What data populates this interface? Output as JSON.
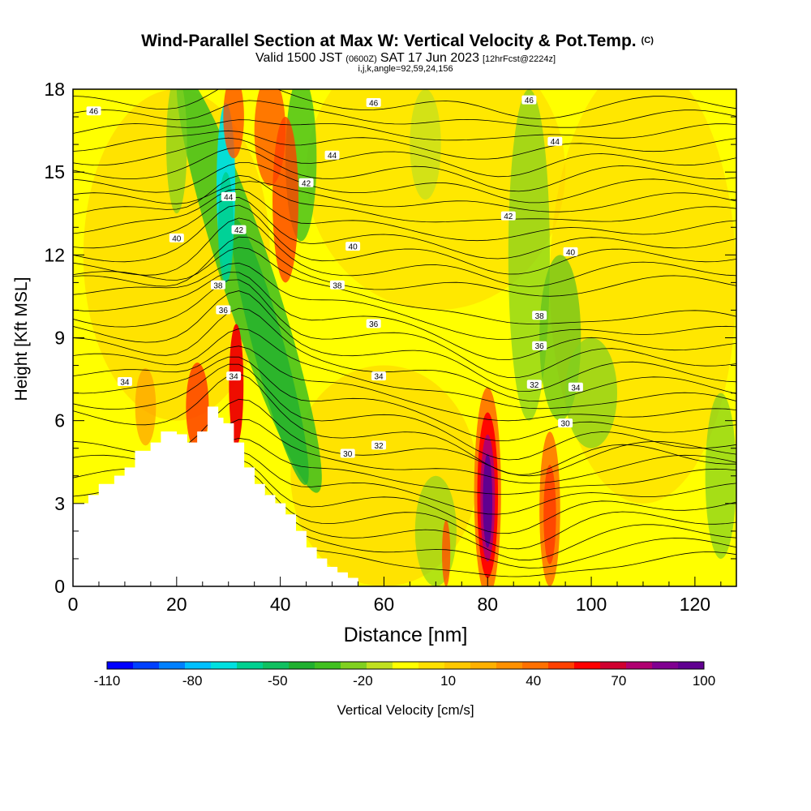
{
  "chart_data": {
    "type": "heatmap",
    "title_main": "Wind-Parallel Section at Max W: Vertical Velocity & Pot.Temp.",
    "title_copyright": "(C)",
    "subtitle_valid": "Valid 1500 JST",
    "subtitle_utc": "(0600Z)",
    "subtitle_date": "SAT 17 Jun 2023",
    "subtitle_fcst": "[12hrFcst@2224z]",
    "subtitle_params": "i,j,k,angle=92,59,24,156",
    "xlabel": "Distance [nm]",
    "ylabel": "Height [Kft MSL]",
    "xlim": [
      0,
      128
    ],
    "ylim": [
      0,
      18
    ],
    "x_ticks": [
      "0",
      "20",
      "40",
      "60",
      "80",
      "100",
      "120"
    ],
    "y_ticks": [
      "0",
      "3",
      "6",
      "9",
      "12",
      "15",
      "18"
    ],
    "colorbar": {
      "label": "Vertical Velocity [cm/s]",
      "tick_labels": [
        "-110",
        "-80",
        "-50",
        "-20",
        "10",
        "40",
        "70",
        "100"
      ],
      "colors": [
        "#0000ff",
        "#0040ff",
        "#0080ff",
        "#00c0ff",
        "#00e0e0",
        "#00d090",
        "#10c060",
        "#20b030",
        "#40c020",
        "#80d020",
        "#c0e020",
        "#ffff00",
        "#ffe000",
        "#ffc800",
        "#ffb000",
        "#ff9000",
        "#ff7000",
        "#ff4000",
        "#ff0000",
        "#d00030",
        "#b00070",
        "#800090",
        "#600090"
      ]
    },
    "theta_contour_labels": [
      {
        "text": "46",
        "x": 4,
        "y": 17.2
      },
      {
        "text": "46",
        "x": 58,
        "y": 17.5
      },
      {
        "text": "46",
        "x": 88,
        "y": 17.6
      },
      {
        "text": "44",
        "x": 50,
        "y": 15.6
      },
      {
        "text": "44",
        "x": 93,
        "y": 16.1
      },
      {
        "text": "44",
        "x": 30,
        "y": 14.1
      },
      {
        "text": "42",
        "x": 45,
        "y": 14.6
      },
      {
        "text": "42",
        "x": 84,
        "y": 13.4
      },
      {
        "text": "42",
        "x": 32,
        "y": 12.9
      },
      {
        "text": "40",
        "x": 20,
        "y": 12.6
      },
      {
        "text": "40",
        "x": 54,
        "y": 12.3
      },
      {
        "text": "40",
        "x": 96,
        "y": 12.1
      },
      {
        "text": "38",
        "x": 28,
        "y": 10.9
      },
      {
        "text": "38",
        "x": 51,
        "y": 10.9
      },
      {
        "text": "38",
        "x": 90,
        "y": 9.8
      },
      {
        "text": "36",
        "x": 29,
        "y": 10.0
      },
      {
        "text": "36",
        "x": 58,
        "y": 9.5
      },
      {
        "text": "36",
        "x": 90,
        "y": 8.7
      },
      {
        "text": "34",
        "x": 10,
        "y": 7.4
      },
      {
        "text": "34",
        "x": 31,
        "y": 7.6
      },
      {
        "text": "34",
        "x": 59,
        "y": 7.6
      },
      {
        "text": "34",
        "x": 97,
        "y": 7.2
      },
      {
        "text": "32",
        "x": 89,
        "y": 7.3
      },
      {
        "text": "32",
        "x": 59,
        "y": 5.1
      },
      {
        "text": "30",
        "x": 95,
        "y": 5.9
      },
      {
        "text": "30",
        "x": 53,
        "y": 4.8
      }
    ],
    "theta_levels": [
      30,
      32,
      34,
      36,
      38,
      40,
      42,
      44,
      46
    ],
    "terrain_heights_kft": [
      {
        "x": 0,
        "h": 3.0
      },
      {
        "x": 3,
        "h": 3.3
      },
      {
        "x": 5,
        "h": 3.7
      },
      {
        "x": 8,
        "h": 4.0
      },
      {
        "x": 10,
        "h": 4.3
      },
      {
        "x": 12,
        "h": 4.9
      },
      {
        "x": 15,
        "h": 5.2
      },
      {
        "x": 17,
        "h": 5.6
      },
      {
        "x": 20,
        "h": 5.5
      },
      {
        "x": 22,
        "h": 5.2
      },
      {
        "x": 24,
        "h": 5.6
      },
      {
        "x": 26,
        "h": 6.5
      },
      {
        "x": 27,
        "h": 6.5
      },
      {
        "x": 28,
        "h": 6.1
      },
      {
        "x": 29,
        "h": 5.9
      },
      {
        "x": 31,
        "h": 5.2
      },
      {
        "x": 33,
        "h": 4.3
      },
      {
        "x": 35,
        "h": 3.7
      },
      {
        "x": 37,
        "h": 3.3
      },
      {
        "x": 39,
        "h": 3.0
      },
      {
        "x": 41,
        "h": 2.6
      },
      {
        "x": 43,
        "h": 2.0
      },
      {
        "x": 45,
        "h": 1.4
      },
      {
        "x": 47,
        "h": 1.0
      },
      {
        "x": 49,
        "h": 0.7
      },
      {
        "x": 51,
        "h": 0.5
      },
      {
        "x": 53,
        "h": 0.3
      },
      {
        "x": 55,
        "h": 0.0
      },
      {
        "x": 128,
        "h": 0.0
      }
    ]
  }
}
